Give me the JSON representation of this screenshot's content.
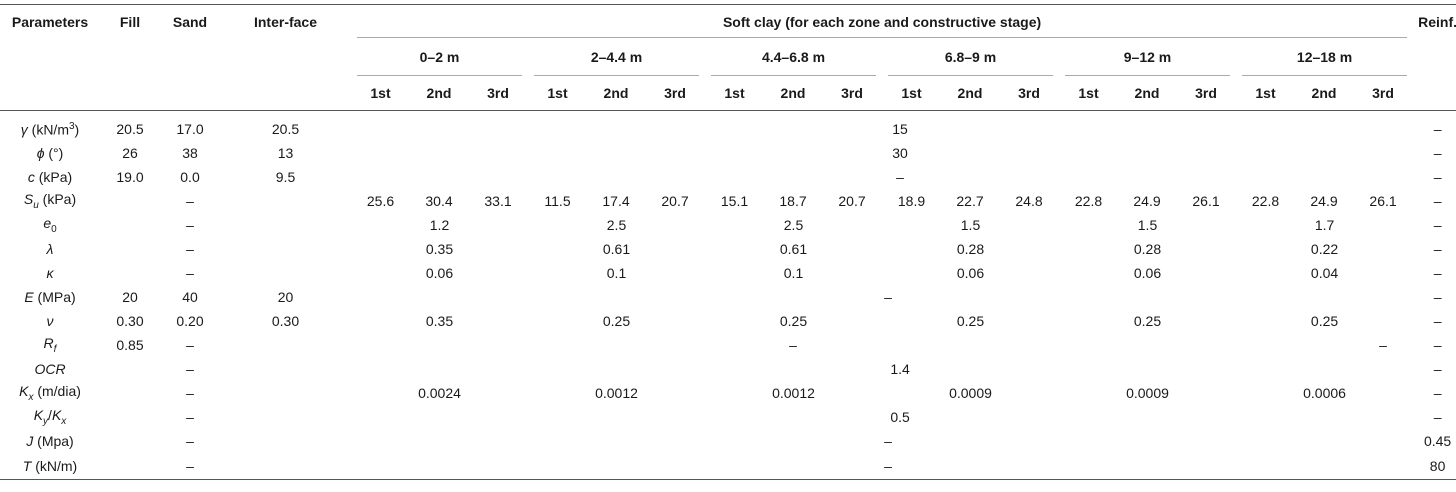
{
  "headers": {
    "parameters": "Parameters",
    "fill": "Fill",
    "sand": "Sand",
    "interface": "Inter-face",
    "soft_clay": "Soft clay (for each zone and constructive stage)",
    "reinf": "Reinf.",
    "zones": [
      "0–2 m",
      "2–4.4 m",
      "4.4–6.8 m",
      "6.8–9 m",
      "9–12 m",
      "12–18 m"
    ],
    "stages": [
      "1st",
      "2nd",
      "3rd",
      "1st",
      "2nd",
      "3rd",
      "1st",
      "2nd",
      "3rd",
      "1st",
      "2nd",
      "3rd",
      "1st",
      "2nd",
      "3rd",
      "1st",
      "2nd",
      "3rd"
    ]
  },
  "rows": {
    "gamma": {
      "label_symbol": "γ",
      "label_unit_pre": " (kN/m",
      "label_sup": "3",
      "label_unit_post": ")",
      "fill": "20.5",
      "sand": "17.0",
      "interface": "20.5",
      "clay": "15",
      "reinf": "–"
    },
    "phi": {
      "label_symbol": "ϕ",
      "label_unit": " (°)",
      "fill": "26",
      "sand": "38",
      "interface": "13",
      "clay": "30",
      "reinf": "–"
    },
    "c": {
      "label_symbol": "c",
      "label_unit": " (kPa)",
      "fill": "19.0",
      "sand": "0.0",
      "interface": "9.5",
      "clay": "–",
      "reinf": "–"
    },
    "su": {
      "label_symbol": "S",
      "label_sub": "u",
      "label_unit": " (kPa)",
      "sand": "–",
      "clay": [
        "25.6",
        "30.4",
        "33.1",
        "11.5",
        "17.4",
        "20.7",
        "15.1",
        "18.7",
        "20.7",
        "18.9",
        "22.7",
        "24.8",
        "22.8",
        "24.9",
        "26.1",
        "22.8",
        "24.9",
        "26.1"
      ],
      "reinf": "–"
    },
    "e0": {
      "label_symbol": "e",
      "label_sub": "0",
      "sand": "–",
      "clay": [
        "1.2",
        "2.5",
        "2.5",
        "1.5",
        "1.5",
        "1.7"
      ],
      "reinf": "–"
    },
    "lambda": {
      "label_symbol": "λ",
      "sand": "–",
      "clay": [
        "0.35",
        "0.61",
        "0.61",
        "0.28",
        "0.28",
        "0.22"
      ],
      "reinf": "–"
    },
    "kappa": {
      "label_symbol": "κ",
      "sand": "–",
      "clay": [
        "0.06",
        "0.1",
        "0.1",
        "0.06",
        "0.06",
        "0.04"
      ],
      "reinf": "–"
    },
    "E": {
      "label_symbol": "E",
      "label_unit": " (MPa)",
      "fill": "20",
      "sand": "40",
      "interface": "20",
      "clay": "–",
      "reinf": "–"
    },
    "nu": {
      "label_symbol": "ν",
      "fill": "0.30",
      "sand": "0.20",
      "interface": "0.30",
      "clay": [
        "0.35",
        "0.25",
        "0.25",
        "0.25",
        "0.25",
        "0.25"
      ],
      "reinf": "–"
    },
    "rf": {
      "label_symbol": "R",
      "label_sub": "f",
      "fill": "0.85",
      "sand": "–",
      "clay_a": "–",
      "clay_b": "–",
      "reinf": "–"
    },
    "ocr": {
      "label_symbol": "OCR",
      "sand": "–",
      "clay": "1.4",
      "reinf": "–"
    },
    "kx": {
      "label_symbol": "K",
      "label_sub": "x",
      "label_unit": " (m/dia)",
      "sand": "–",
      "clay": [
        "0.0024",
        "0.0012",
        "0.0012",
        "0.0009",
        "0.0009",
        "0.0006"
      ],
      "reinf": "–"
    },
    "kykx": {
      "label_symbol1": "K",
      "label_sub1": "y",
      "label_slash": "/",
      "label_symbol2": "K",
      "label_sub2": "x",
      "sand": "–",
      "clay": "0.5",
      "reinf": "–"
    },
    "J": {
      "label_symbol": "J",
      "label_unit": " (Mpa)",
      "sand": "–",
      "clay": "–",
      "reinf": "0.45"
    },
    "T": {
      "label_symbol": "T",
      "label_unit": " (kN/m)",
      "sand": "–",
      "clay": "–",
      "reinf": "80"
    }
  }
}
